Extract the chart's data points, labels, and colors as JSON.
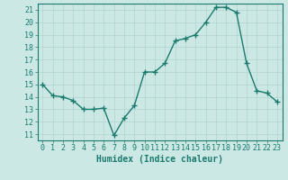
{
  "x": [
    0,
    1,
    2,
    3,
    4,
    5,
    6,
    7,
    8,
    9,
    10,
    11,
    12,
    13,
    14,
    15,
    16,
    17,
    18,
    19,
    20,
    21,
    22,
    23
  ],
  "y": [
    15,
    14.1,
    14,
    13.7,
    13,
    13,
    13.1,
    10.9,
    12.3,
    13.3,
    16,
    16,
    16.7,
    18.5,
    18.7,
    19,
    20,
    21.2,
    21.2,
    20.8,
    16.7,
    14.5,
    14.3,
    13.6
  ],
  "xlabel": "Humidex (Indice chaleur)",
  "xlim": [
    -0.5,
    23.5
  ],
  "ylim": [
    10.5,
    21.5
  ],
  "yticks": [
    11,
    12,
    13,
    14,
    15,
    16,
    17,
    18,
    19,
    20,
    21
  ],
  "xticks": [
    0,
    1,
    2,
    3,
    4,
    5,
    6,
    7,
    8,
    9,
    10,
    11,
    12,
    13,
    14,
    15,
    16,
    17,
    18,
    19,
    20,
    21,
    22,
    23
  ],
  "line_color": "#1a7a6e",
  "marker": "+",
  "bg_color": "#cce8e5",
  "grid_color": "#b0d4d0",
  "axis_color": "#1a7a6e",
  "xlabel_fontsize": 7,
  "tick_fontsize": 6,
  "linewidth": 1.0,
  "markersize": 4,
  "markeredgewidth": 1.0
}
